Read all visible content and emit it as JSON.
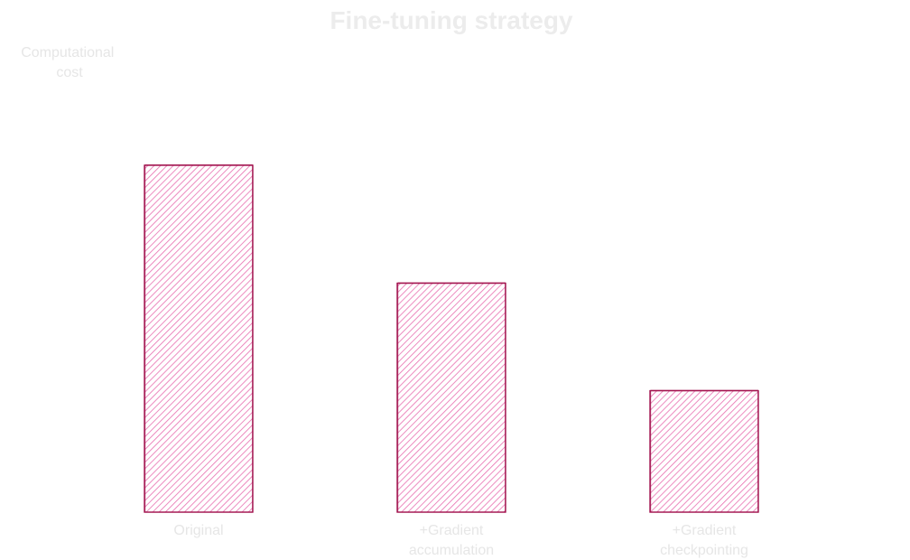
{
  "chart_data": {
    "type": "bar",
    "title": "Fine-tuning strategy",
    "xlabel": "",
    "ylabel": "Computational cost",
    "categories": [
      "Original",
      "+Gradient accumulation",
      "+Gradient checkpointing"
    ],
    "category_lines": [
      [
        "Original"
      ],
      [
        "+Gradient",
        "accumulation"
      ],
      [
        "+Gradient",
        "checkpointing"
      ]
    ],
    "ylabel_lines": [
      "Computational",
      "cost"
    ],
    "values": [
      100,
      66,
      35
    ],
    "ylim": [
      0,
      100
    ],
    "grid": false,
    "legend": "none",
    "style": "hand-drawn hatched"
  },
  "colors": {
    "bar_fill": "#e86fb0",
    "bar_outline": "#a3144f",
    "text": "#e6e6e6",
    "title": "#ececec",
    "background": "#ffffff"
  }
}
